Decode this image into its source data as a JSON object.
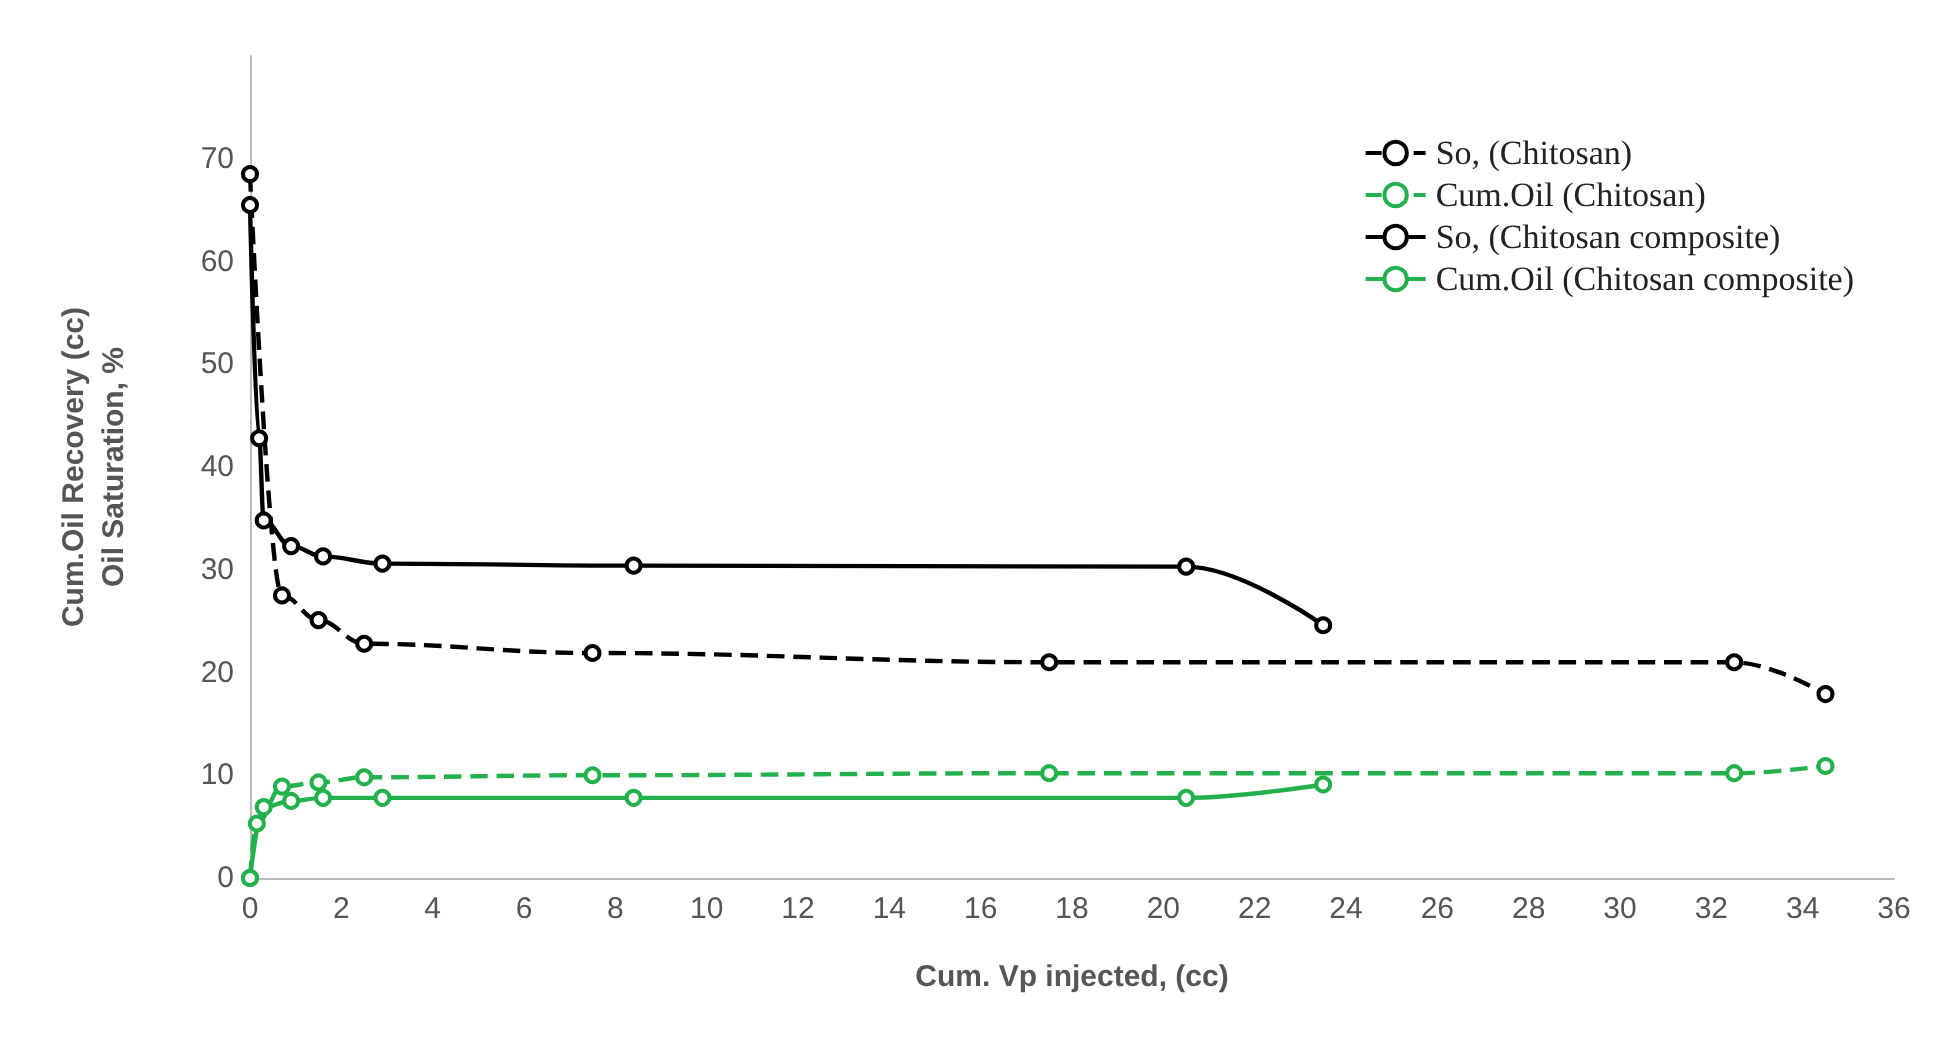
{
  "chart_data": {
    "type": "line",
    "xlabel": "Cum. Vp injected, (cc)",
    "ylabel": "Cum.Oil Recovery (cc)\nOil Saturation, %",
    "xlim": [
      0,
      36
    ],
    "xticks": [
      0,
      2,
      4,
      6,
      8,
      10,
      12,
      14,
      16,
      18,
      20,
      22,
      24,
      26,
      28,
      30,
      32,
      34,
      36
    ],
    "ylim": [
      0,
      80
    ],
    "yticks": [
      0,
      10,
      20,
      30,
      40,
      50,
      60,
      70
    ],
    "grid": false,
    "legend": "top right",
    "marker": "circle",
    "series": [
      {
        "name": "So, (Chitosan)",
        "color": "#000000",
        "line_style": "dashed",
        "x": [
          0,
          0.7,
          1.5,
          2.5,
          7.5,
          17.5,
          32.5,
          34.5
        ],
        "values": [
          68.5,
          27.5,
          25.1,
          22.8,
          21.9,
          21.0,
          21.0,
          17.9
        ]
      },
      {
        "name": "Cum.Oil (Chitosan)",
        "color": "#22b14c",
        "line_style": "dashed",
        "x": [
          0,
          0.15,
          0.7,
          1.5,
          2.5,
          7.5,
          17.5,
          32.5,
          34.5
        ],
        "values": [
          0,
          5.3,
          8.9,
          9.3,
          9.8,
          10.0,
          10.2,
          10.2,
          10.9
        ]
      },
      {
        "name": "So, (Chitosan composite)",
        "color": "#000000",
        "line_style": "solid",
        "x": [
          0,
          0.2,
          0.3,
          0.9,
          1.6,
          2.9,
          8.4,
          20.5,
          23.5
        ],
        "values": [
          65.5,
          42.8,
          34.8,
          32.3,
          31.3,
          30.6,
          30.4,
          30.3,
          24.6
        ]
      },
      {
        "name": "Cum.Oil (Chitosan composite)",
        "color": "#22b14c",
        "line_style": "solid",
        "x": [
          0,
          0.3,
          0.9,
          1.6,
          2.9,
          8.4,
          20.5,
          23.5
        ],
        "values": [
          0,
          6.9,
          7.5,
          7.8,
          7.8,
          7.8,
          7.8,
          9.1
        ]
      }
    ]
  }
}
